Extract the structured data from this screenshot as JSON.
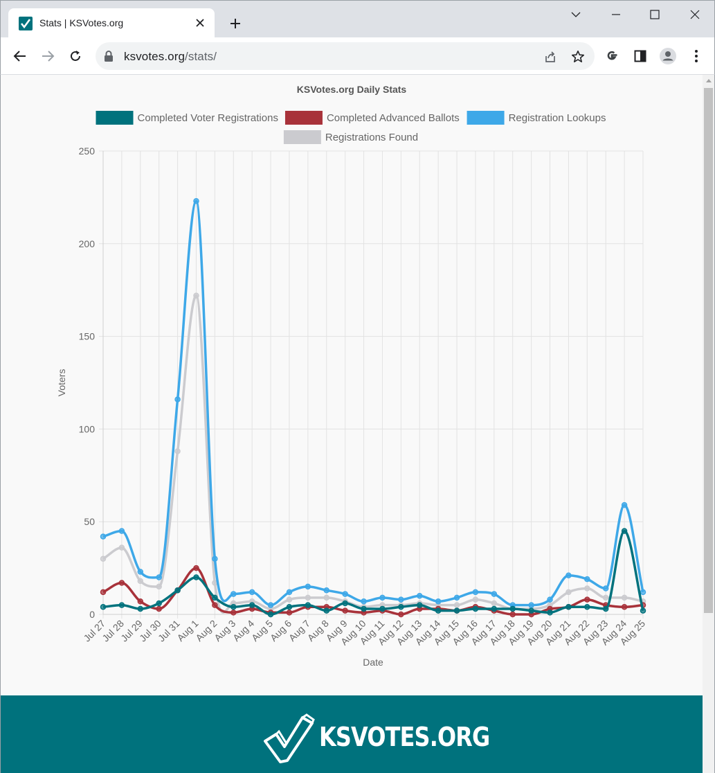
{
  "browser": {
    "tab_title": "Stats | KSVotes.org",
    "url_host": "ksvotes.org",
    "url_path": "/stats/"
  },
  "icons": [
    "favicon-icon",
    "close-icon",
    "plus-icon",
    "minimize-icon",
    "maximize-icon",
    "window-close-icon",
    "back-arrow-icon",
    "forward-arrow-icon",
    "reload-icon",
    "lock-icon",
    "share-icon",
    "star-icon",
    "google-icon",
    "sidebar-icon",
    "profile-icon",
    "more-vert-icon",
    "scroll-up-icon",
    "checkmark-logo-icon"
  ],
  "footer": {
    "brand": "KSVOTES.ORG"
  },
  "colors": {
    "teal": "#00727d",
    "red": "#a8323a",
    "blue": "#3ea8e8",
    "gray": "#cbcbcf"
  },
  "chart_data": {
    "type": "line",
    "title": "KSVotes.org Daily Stats",
    "xlabel": "Date",
    "ylabel": "Voters",
    "ylim": [
      0,
      250
    ],
    "yticks": [
      0,
      50,
      100,
      150,
      200,
      250
    ],
    "grid": true,
    "legend_position": "top",
    "categories": [
      "Jul 27",
      "Jul 28",
      "Jul 29",
      "Jul 30",
      "Jul 31",
      "Aug 1",
      "Aug 2",
      "Aug 3",
      "Aug 4",
      "Aug 5",
      "Aug 6",
      "Aug 7",
      "Aug 8",
      "Aug 9",
      "Aug 10",
      "Aug 11",
      "Aug 12",
      "Aug 13",
      "Aug 14",
      "Aug 15",
      "Aug 16",
      "Aug 17",
      "Aug 18",
      "Aug 19",
      "Aug 20",
      "Aug 21",
      "Aug 22",
      "Aug 23",
      "Aug 24",
      "Aug 25"
    ],
    "series": [
      {
        "name": "Completed Voter Registrations",
        "color": "#00727d",
        "values": [
          4,
          5,
          3,
          6,
          13,
          20,
          9,
          4,
          5,
          0,
          4,
          5,
          2,
          6,
          3,
          3,
          4,
          5,
          2,
          2,
          3,
          3,
          3,
          2,
          1,
          4,
          4,
          3,
          45,
          2
        ]
      },
      {
        "name": "Completed Advanced Ballots",
        "color": "#a8323a",
        "values": [
          12,
          17,
          7,
          3,
          13,
          25,
          5,
          1,
          3,
          1,
          1,
          4,
          4,
          2,
          1,
          2,
          0,
          3,
          3,
          2,
          4,
          2,
          0,
          0,
          3,
          4,
          8,
          5,
          4,
          5
        ]
      },
      {
        "name": "Registration Lookups",
        "color": "#3ea8e8",
        "values": [
          42,
          45,
          23,
          20,
          116,
          223,
          30,
          11,
          12,
          5,
          12,
          15,
          13,
          11,
          7,
          9,
          8,
          10,
          7,
          9,
          12,
          11,
          5,
          5,
          8,
          21,
          19,
          14,
          59,
          12
        ]
      },
      {
        "name": "Registrations Found",
        "color": "#cbcbcf",
        "values": [
          30,
          36,
          18,
          15,
          88,
          172,
          17,
          6,
          7,
          3,
          8,
          9,
          9,
          7,
          4,
          5,
          5,
          6,
          5,
          5,
          8,
          6,
          3,
          3,
          5,
          12,
          14,
          9,
          9,
          7
        ]
      }
    ]
  }
}
